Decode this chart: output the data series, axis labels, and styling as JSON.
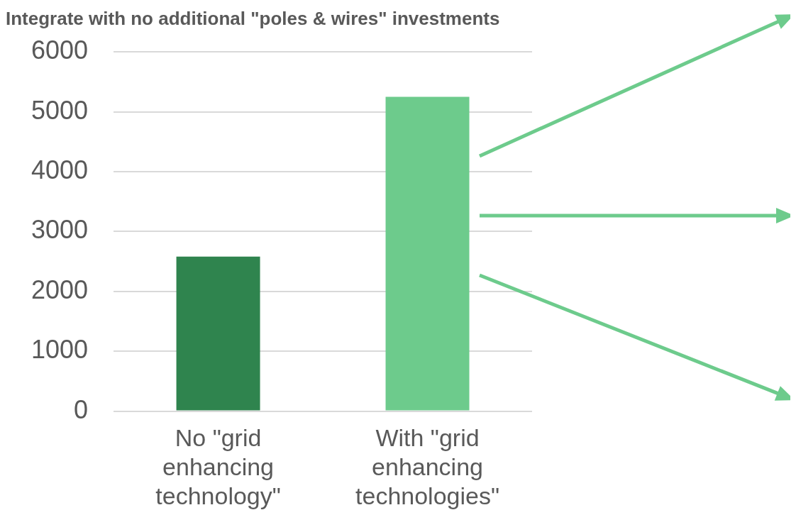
{
  "chart_data": {
    "type": "bar",
    "title": "Integrate with no additional \"poles & wires\" investments",
    "categories": [
      "No \"grid enhancing technology\"",
      "With \"grid enhancing technologies\""
    ],
    "values": [
      2580,
      5250
    ],
    "colors": [
      "#2f844e",
      "#6dcb8c"
    ],
    "ylim": [
      0,
      6000
    ],
    "yticks": [
      0,
      1000,
      2000,
      3000,
      4000,
      5000,
      6000
    ],
    "grid": "y",
    "legend": false
  }
}
